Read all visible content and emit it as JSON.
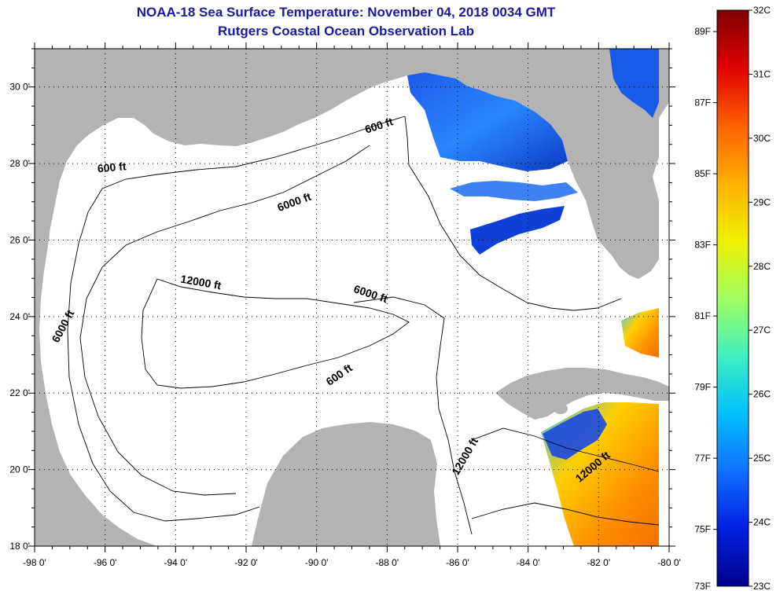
{
  "title": "NOAA-18 Sea Surface Temperature:  November 04, 2018 0034 GMT",
  "subtitle": "Rutgers Coastal Ocean Observation Lab",
  "x_axis": {
    "ticks": [
      "-98 0'",
      "-96 0'",
      "-94 0'",
      "-92 0'",
      "-90 0'",
      "-88 0'",
      "-86 0'",
      "-84 0'",
      "-82 0'",
      "-80 0'"
    ],
    "values": [
      -98,
      -96,
      -94,
      -92,
      -90,
      -88,
      -86,
      -84,
      -82,
      -80
    ],
    "range": [
      -98,
      -80
    ]
  },
  "y_axis": {
    "ticks": [
      "30 0'",
      "28 0'",
      "26 0'",
      "24 0'",
      "22 0'",
      "20 0'",
      "18 0'"
    ],
    "values": [
      30,
      28,
      26,
      24,
      22,
      20,
      18
    ],
    "range": [
      18,
      31
    ]
  },
  "grid": "dotted",
  "colorbar": {
    "fahrenheit": {
      "labels": [
        "89F",
        "87F",
        "85F",
        "83F",
        "81F",
        "79F",
        "77F",
        "75F",
        "73F"
      ],
      "values": [
        89,
        87,
        85,
        83,
        81,
        79,
        77,
        75,
        73
      ]
    },
    "celsius": {
      "labels": [
        "32C",
        "31C",
        "30C",
        "29C",
        "28C",
        "27C",
        "26C",
        "25C",
        "24C",
        "23C"
      ],
      "values": [
        32,
        31,
        30,
        29,
        28,
        27,
        26,
        25,
        24,
        23
      ]
    },
    "range_c": [
      23,
      32
    ],
    "colors": [
      "#00008c",
      "#0020e0",
      "#1070ff",
      "#00c0ff",
      "#40f0c0",
      "#a0ff60",
      "#f0f000",
      "#ffb000",
      "#ff6000",
      "#e00000",
      "#800000"
    ]
  },
  "contours": [
    {
      "label": "600 ft",
      "lon": -88.2,
      "lat": 28.9,
      "angle": -18
    },
    {
      "label": "600 ft",
      "lon": -95.8,
      "lat": 27.8,
      "angle": -5
    },
    {
      "label": "6000 ft",
      "lon": -90.6,
      "lat": 26.9,
      "angle": -20
    },
    {
      "label": "12000 ft",
      "lon": -93.3,
      "lat": 24.8,
      "angle": 10
    },
    {
      "label": "6000 ft",
      "lon": -88.5,
      "lat": 24.5,
      "angle": 18
    },
    {
      "label": "6000 ft",
      "lon": -97.1,
      "lat": 23.7,
      "angle": -62
    },
    {
      "label": "600 ft",
      "lon": -89.3,
      "lat": 22.4,
      "angle": -35
    },
    {
      "label": "12000 ft",
      "lon": -85.7,
      "lat": 20.3,
      "angle": -60
    },
    {
      "label": "12000 ft",
      "lon": -82.1,
      "lat": 20.0,
      "angle": -40
    }
  ],
  "colors": {
    "land": "#b3b3b3",
    "ocean": "#ffffff",
    "title": "#1a1aa0"
  }
}
